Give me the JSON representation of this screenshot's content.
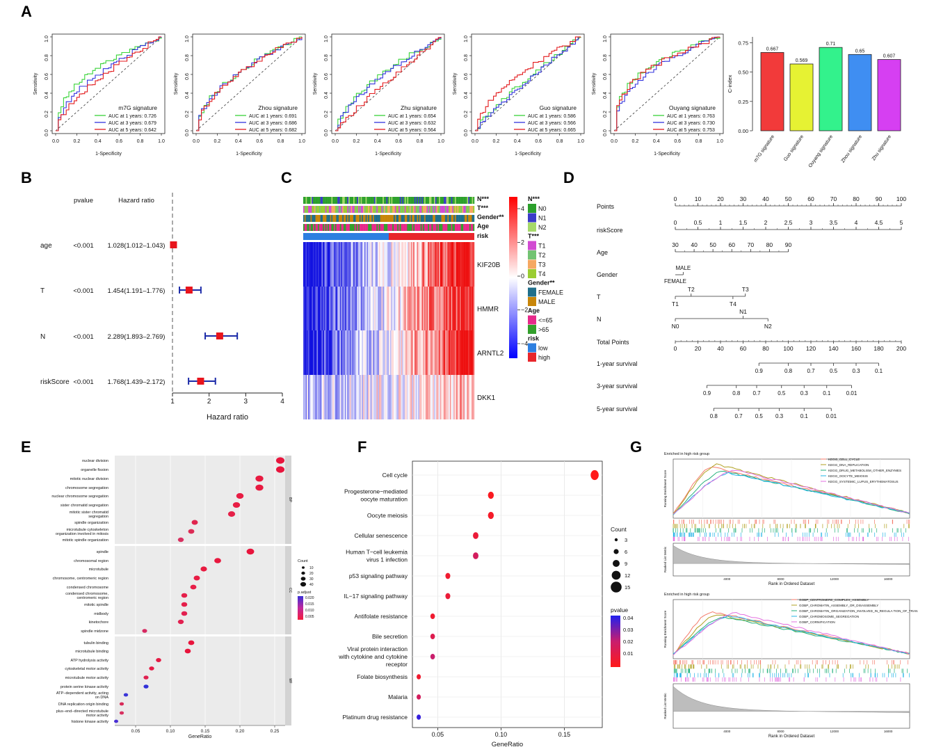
{
  "panel_labels": [
    "A",
    "B",
    "C",
    "D",
    "E",
    "F",
    "G"
  ],
  "chart_data": [
    {
      "type": "line",
      "panel": "A",
      "subtype": "roc",
      "xlabel": "1-Specificity",
      "ylabel": "Sensitivity",
      "xlim": [
        0,
        1
      ],
      "ylim": [
        0,
        1
      ],
      "ticks": [
        "0.0",
        "0.2",
        "0.4",
        "0.6",
        "0.8",
        "1.0"
      ],
      "series_colors": [
        "#39d339",
        "#3333dd",
        "#e31a1c"
      ],
      "plots": [
        {
          "name": "m7G signature",
          "legend": [
            "AUC at 1 years: 0.726",
            "AUC at 3 years: 0.679",
            "AUC at 5 years: 0.642"
          ],
          "aucs": [
            0.726,
            0.679,
            0.642
          ]
        },
        {
          "name": "Zhou signature",
          "legend": [
            "AUC at 1 years: 0.691",
            "AUC at 3 years: 0.686",
            "AUC at 5 years: 0.682"
          ],
          "aucs": [
            0.691,
            0.686,
            0.682
          ]
        },
        {
          "name": "Zhu signature",
          "legend": [
            "AUC at 1 years: 0.654",
            "AUC at 3 years: 0.632",
            "AUC at 5 years: 0.564"
          ],
          "aucs": [
            0.654,
            0.632,
            0.564
          ]
        },
        {
          "name": "Guo signature",
          "legend": [
            "AUC at 1 years: 0.586",
            "AUC at 3 years: 0.566",
            "AUC at 5 years: 0.665"
          ],
          "aucs": [
            0.586,
            0.566,
            0.665
          ]
        },
        {
          "name": "Ouyang signature",
          "legend": [
            "AUC at 1 years: 0.763",
            "AUC at 3 years: 0.730",
            "AUC at 5 years: 0.753"
          ],
          "aucs": [
            0.763,
            0.73,
            0.753
          ]
        }
      ]
    },
    {
      "type": "bar",
      "panel": "A",
      "ylabel": "C-index",
      "ylim": [
        0,
        0.8
      ],
      "yticks": [
        "0.00",
        "0.25",
        "0.50",
        "0.75"
      ],
      "categories": [
        "m7G signature",
        "Guo signature",
        "Ouyang signature",
        "Zhou signature",
        "Zhu signature"
      ],
      "values": [
        0.667,
        0.569,
        0.71,
        0.65,
        0.607
      ],
      "labels": [
        "0.667",
        "0.569",
        "0.71",
        "0.65",
        "0.607"
      ],
      "colors": [
        "#f23a3a",
        "#e6f233",
        "#33f28c",
        "#3f8ef2",
        "#d63ff2"
      ]
    },
    {
      "type": "forest",
      "panel": "B",
      "headers": [
        "pvalue",
        "Hazard ratio"
      ],
      "xlabel": "Hazard ratio",
      "xlim": [
        1,
        4
      ],
      "xticks": [
        "1",
        "2",
        "3",
        "4"
      ],
      "rows": [
        {
          "name": "age",
          "pvalue": "<0.001",
          "hr_text": "1.028(1.012–1.043)",
          "hr": 1.028,
          "lo": 1.012,
          "hi": 1.043
        },
        {
          "name": "T",
          "pvalue": "<0.001",
          "hr_text": "1.454(1.191–1.776)",
          "hr": 1.454,
          "lo": 1.191,
          "hi": 1.776
        },
        {
          "name": "N",
          "pvalue": "<0.001",
          "hr_text": "2.289(1.893–2.769)",
          "hr": 2.289,
          "lo": 1.893,
          "hi": 2.769
        },
        {
          "name": "riskScore",
          "pvalue": "<0.001",
          "hr_text": "1.768(1.439–2.172)",
          "hr": 1.768,
          "lo": 1.439,
          "hi": 2.172
        }
      ]
    },
    {
      "type": "heatmap",
      "panel": "C",
      "annotations": [
        "N***",
        "T***",
        "Gender**",
        "Age",
        "risk"
      ],
      "genes": [
        "KIF20B",
        "HMMR",
        "ARNTL2",
        "DKK1"
      ],
      "scale_ticks": [
        "4",
        "2",
        "0",
        "−2",
        "−4"
      ],
      "legend": [
        {
          "title": "N***",
          "items": [
            {
              "label": "N0",
              "color": "#2ca02c"
            },
            {
              "label": "N1",
              "color": "#3b3bc8"
            },
            {
              "label": "N2",
              "color": "#a6d96a"
            }
          ]
        },
        {
          "title": "T***",
          "items": [
            {
              "label": "T1",
              "color": "#d24bd2"
            },
            {
              "label": "T2",
              "color": "#73c373"
            },
            {
              "label": "T3",
              "color": "#f5a862"
            },
            {
              "label": "T4",
              "color": "#9acd32"
            }
          ]
        },
        {
          "title": "Gender**",
          "items": [
            {
              "label": "FEMALE",
              "color": "#1f6f8b"
            },
            {
              "label": "MALE",
              "color": "#c8860a"
            }
          ]
        },
        {
          "title": "Age",
          "items": [
            {
              "label": "<=65",
              "color": "#e7298a"
            },
            {
              "label": ">65",
              "color": "#33a02c"
            }
          ]
        },
        {
          "title": "risk",
          "items": [
            {
              "label": "low",
              "color": "#2d7fe0"
            },
            {
              "label": "high",
              "color": "#e8262b"
            }
          ]
        }
      ]
    },
    {
      "type": "nomogram",
      "panel": "D",
      "rows": [
        {
          "name": "Points",
          "ticks": [
            "0",
            "10",
            "20",
            "30",
            "40",
            "50",
            "60",
            "70",
            "80",
            "90",
            "100"
          ]
        },
        {
          "name": "riskScore",
          "ticks": [
            "0",
            "0.5",
            "1",
            "1.5",
            "2",
            "2.5",
            "3",
            "3.5",
            "4",
            "4.5",
            "5"
          ]
        },
        {
          "name": "Age",
          "ticks": [
            "30",
            "40",
            "50",
            "60",
            "70",
            "80",
            "90"
          ]
        },
        {
          "name": "Gender",
          "ticks": [
            "MALE",
            "FEMALE"
          ]
        },
        {
          "name": "T",
          "ticks": [
            "T2",
            "T3",
            "T1",
            "T4"
          ]
        },
        {
          "name": "N",
          "ticks": [
            "N1",
            "N0",
            "N2"
          ]
        },
        {
          "name": "Total Points",
          "ticks": [
            "0",
            "20",
            "40",
            "60",
            "80",
            "100",
            "120",
            "140",
            "160",
            "180",
            "200"
          ]
        },
        {
          "name": "1-year survival",
          "ticks": [
            "0.9",
            "0.8",
            "0.7",
            "0.5",
            "0.3",
            "0.1"
          ]
        },
        {
          "name": "3-year survival",
          "ticks": [
            "0.9",
            "0.8",
            "0.7",
            "0.5",
            "0.3",
            "0.1",
            "0.01"
          ]
        },
        {
          "name": "5-year survival",
          "ticks": [
            "0.8",
            "0.7",
            "0.5",
            "0.3",
            "0.1",
            "0.01"
          ]
        }
      ]
    },
    {
      "type": "scatter",
      "panel": "E",
      "subtype": "dotplot",
      "xlabel": "GeneRatio",
      "xticks": [
        "0.05",
        "0.10",
        "0.15",
        "0.20",
        "0.25"
      ],
      "facets": [
        "BP",
        "CC",
        "MF"
      ],
      "size_legend": {
        "title": "Count",
        "labels": [
          "10",
          "20",
          "30",
          "40"
        ]
      },
      "color_legend": {
        "title": "p.adjust",
        "labels": [
          "0.020",
          "0.015",
          "0.010",
          "0.005"
        ]
      },
      "terms": [
        {
          "label": "nuclear division",
          "facet": "BP",
          "ratio": 0.258
        },
        {
          "label": "organelle fission",
          "facet": "BP",
          "ratio": 0.258
        },
        {
          "label": "mitotic nuclear division",
          "facet": "BP",
          "ratio": 0.228
        },
        {
          "label": "chromosome segregation",
          "facet": "BP",
          "ratio": 0.228
        },
        {
          "label": "nuclear chromosome segregation",
          "facet": "BP",
          "ratio": 0.2
        },
        {
          "label": "sister chromatid segregation",
          "facet": "BP",
          "ratio": 0.195
        },
        {
          "label": "mitotic sister chromatid segregation",
          "facet": "BP",
          "ratio": 0.188
        },
        {
          "label": "spindle organization",
          "facet": "BP",
          "ratio": 0.135
        },
        {
          "label": "microtubule cytoskeleton organization involved in mitosis",
          "facet": "BP",
          "ratio": 0.13
        },
        {
          "label": "mitotic spindle organization",
          "facet": "BP",
          "ratio": 0.115
        },
        {
          "label": "spindle",
          "facet": "CC",
          "ratio": 0.215
        },
        {
          "label": "chromosomal region",
          "facet": "CC",
          "ratio": 0.168
        },
        {
          "label": "microtubule",
          "facet": "CC",
          "ratio": 0.148
        },
        {
          "label": "chromosome, centromeric region",
          "facet": "CC",
          "ratio": 0.138
        },
        {
          "label": "condensed chromosome",
          "facet": "CC",
          "ratio": 0.133
        },
        {
          "label": "condensed chromosome, centromeric region",
          "facet": "CC",
          "ratio": 0.12
        },
        {
          "label": "mitotic spindle",
          "facet": "CC",
          "ratio": 0.12
        },
        {
          "label": "midbody",
          "facet": "CC",
          "ratio": 0.12
        },
        {
          "label": "kinetochore",
          "facet": "CC",
          "ratio": 0.115
        },
        {
          "label": "spindle midzone",
          "facet": "CC",
          "ratio": 0.063
        },
        {
          "label": "tubulin binding",
          "facet": "MF",
          "ratio": 0.13
        },
        {
          "label": "microtubule binding",
          "facet": "MF",
          "ratio": 0.125
        },
        {
          "label": "ATP hydrolysis activity",
          "facet": "MF",
          "ratio": 0.083
        },
        {
          "label": "cytoskeletal motor activity",
          "facet": "MF",
          "ratio": 0.073
        },
        {
          "label": "microtubule motor activity",
          "facet": "MF",
          "ratio": 0.065
        },
        {
          "label": "protein serine kinase activity",
          "facet": "MF",
          "ratio": 0.065
        },
        {
          "label": "ATP−dependent activity, acting on DNA",
          "facet": "MF",
          "ratio": 0.036
        },
        {
          "label": "DNA replication origin binding",
          "facet": "MF",
          "ratio": 0.03
        },
        {
          "label": "plus−end−directed microtubule motor activity",
          "facet": "MF",
          "ratio": 0.03
        },
        {
          "label": "histone kinase activity",
          "facet": "MF",
          "ratio": 0.022
        }
      ]
    },
    {
      "type": "scatter",
      "panel": "F",
      "subtype": "dotplot",
      "xlabel": "GeneRatio",
      "xticks": [
        "0.05",
        "0.10",
        "0.15"
      ],
      "size_legend": {
        "title": "Count",
        "labels": [
          "3",
          "6",
          "9",
          "12",
          "15"
        ]
      },
      "color_legend": {
        "title": "pvalue",
        "labels": [
          "0.04",
          "0.03",
          "0.02",
          "0.01"
        ]
      },
      "terms": [
        {
          "label": "Cell cycle",
          "ratio": 0.174,
          "count": 15,
          "pvalue": 0.0
        },
        {
          "label": "Progesterone−mediated oocyte maturation",
          "ratio": 0.092,
          "count": 8,
          "pvalue": 0.002
        },
        {
          "label": "Oocyte meiosis",
          "ratio": 0.092,
          "count": 8,
          "pvalue": 0.004
        },
        {
          "label": "Cellular senescence",
          "ratio": 0.08,
          "count": 7,
          "pvalue": 0.008
        },
        {
          "label": "Human T−cell leukemia virus 1 infection",
          "ratio": 0.08,
          "count": 7,
          "pvalue": 0.018
        },
        {
          "label": "p53 signaling pathway",
          "ratio": 0.058,
          "count": 5,
          "pvalue": 0.006
        },
        {
          "label": "IL−17 signaling pathway",
          "ratio": 0.058,
          "count": 5,
          "pvalue": 0.008
        },
        {
          "label": "Antifolate resistance",
          "ratio": 0.046,
          "count": 4,
          "pvalue": 0.006
        },
        {
          "label": "Bile secretion",
          "ratio": 0.046,
          "count": 4,
          "pvalue": 0.014
        },
        {
          "label": "Viral protein interaction with cytokine and cytokine receptor",
          "ratio": 0.046,
          "count": 4,
          "pvalue": 0.022
        },
        {
          "label": "Folate biosynthesis",
          "ratio": 0.035,
          "count": 3,
          "pvalue": 0.006
        },
        {
          "label": "Malaria",
          "ratio": 0.035,
          "count": 3,
          "pvalue": 0.018
        },
        {
          "label": "Platinum drug resistance",
          "ratio": 0.035,
          "count": 3,
          "pvalue": 0.042
        }
      ]
    },
    {
      "type": "line",
      "panel": "G",
      "subtype": "gsea",
      "plots": [
        {
          "title": "Enriched in high risk group",
          "ylabel": "Running Enrichment Score",
          "rank_ylabel": "Ranked List Metric",
          "xlabel": "Rank in Ordered Dataset",
          "xticks": [
            "4000",
            "8000",
            "12000",
            "16000"
          ],
          "series": [
            {
              "name": "KEGG_CELL_CYCLE",
              "color": "#f47a6a",
              "peak": 0.79
            },
            {
              "name": "KEGG_DNA_REPLICATION",
              "color": "#b0a020",
              "peak": 0.83
            },
            {
              "name": "KEGG_DRUG_METABOLISM_OTHER_ENZYMES",
              "color": "#22b07a",
              "peak": 0.72
            },
            {
              "name": "KEGG_OOCYTE_MEIOSIS",
              "color": "#22b4e6",
              "peak": 0.69
            },
            {
              "name": "KEGG_SYSTEMIC_LUPUS_ERYTHEMATOSUS",
              "color": "#e36fe0",
              "peak": 0.74
            }
          ]
        },
        {
          "title": "Enriched in high risk group",
          "ylabel": "Running Enrichment Score",
          "rank_ylabel": "Ranked List Metric",
          "xlabel": "Rank in Ordered Dataset",
          "xticks": [
            "4000",
            "8000",
            "12000",
            "16000"
          ],
          "series": [
            {
              "name": "GOBP_CENTROMERE_COMPLEX_ASSEMBLY",
              "color": "#f47a6a",
              "peak": 0.72
            },
            {
              "name": "GOBP_CHROMATIN_ASSEMBLY_OR_DISASSEMBLY",
              "color": "#b0a020",
              "peak": 0.67
            },
            {
              "name": "GOBP_CHROMATIN_ORGANIZATION_INVOLVED_IN_REGULA TION_OF_TRAN",
              "color": "#22b07a",
              "peak": 0.63
            },
            {
              "name": "GOBP_CHROMOSOME_SEGREGATION",
              "color": "#22b4e6",
              "peak": 0.65
            },
            {
              "name": "GOBP_CORNIFICATION",
              "color": "#e36fe0",
              "peak": 0.7
            }
          ]
        }
      ]
    }
  ]
}
